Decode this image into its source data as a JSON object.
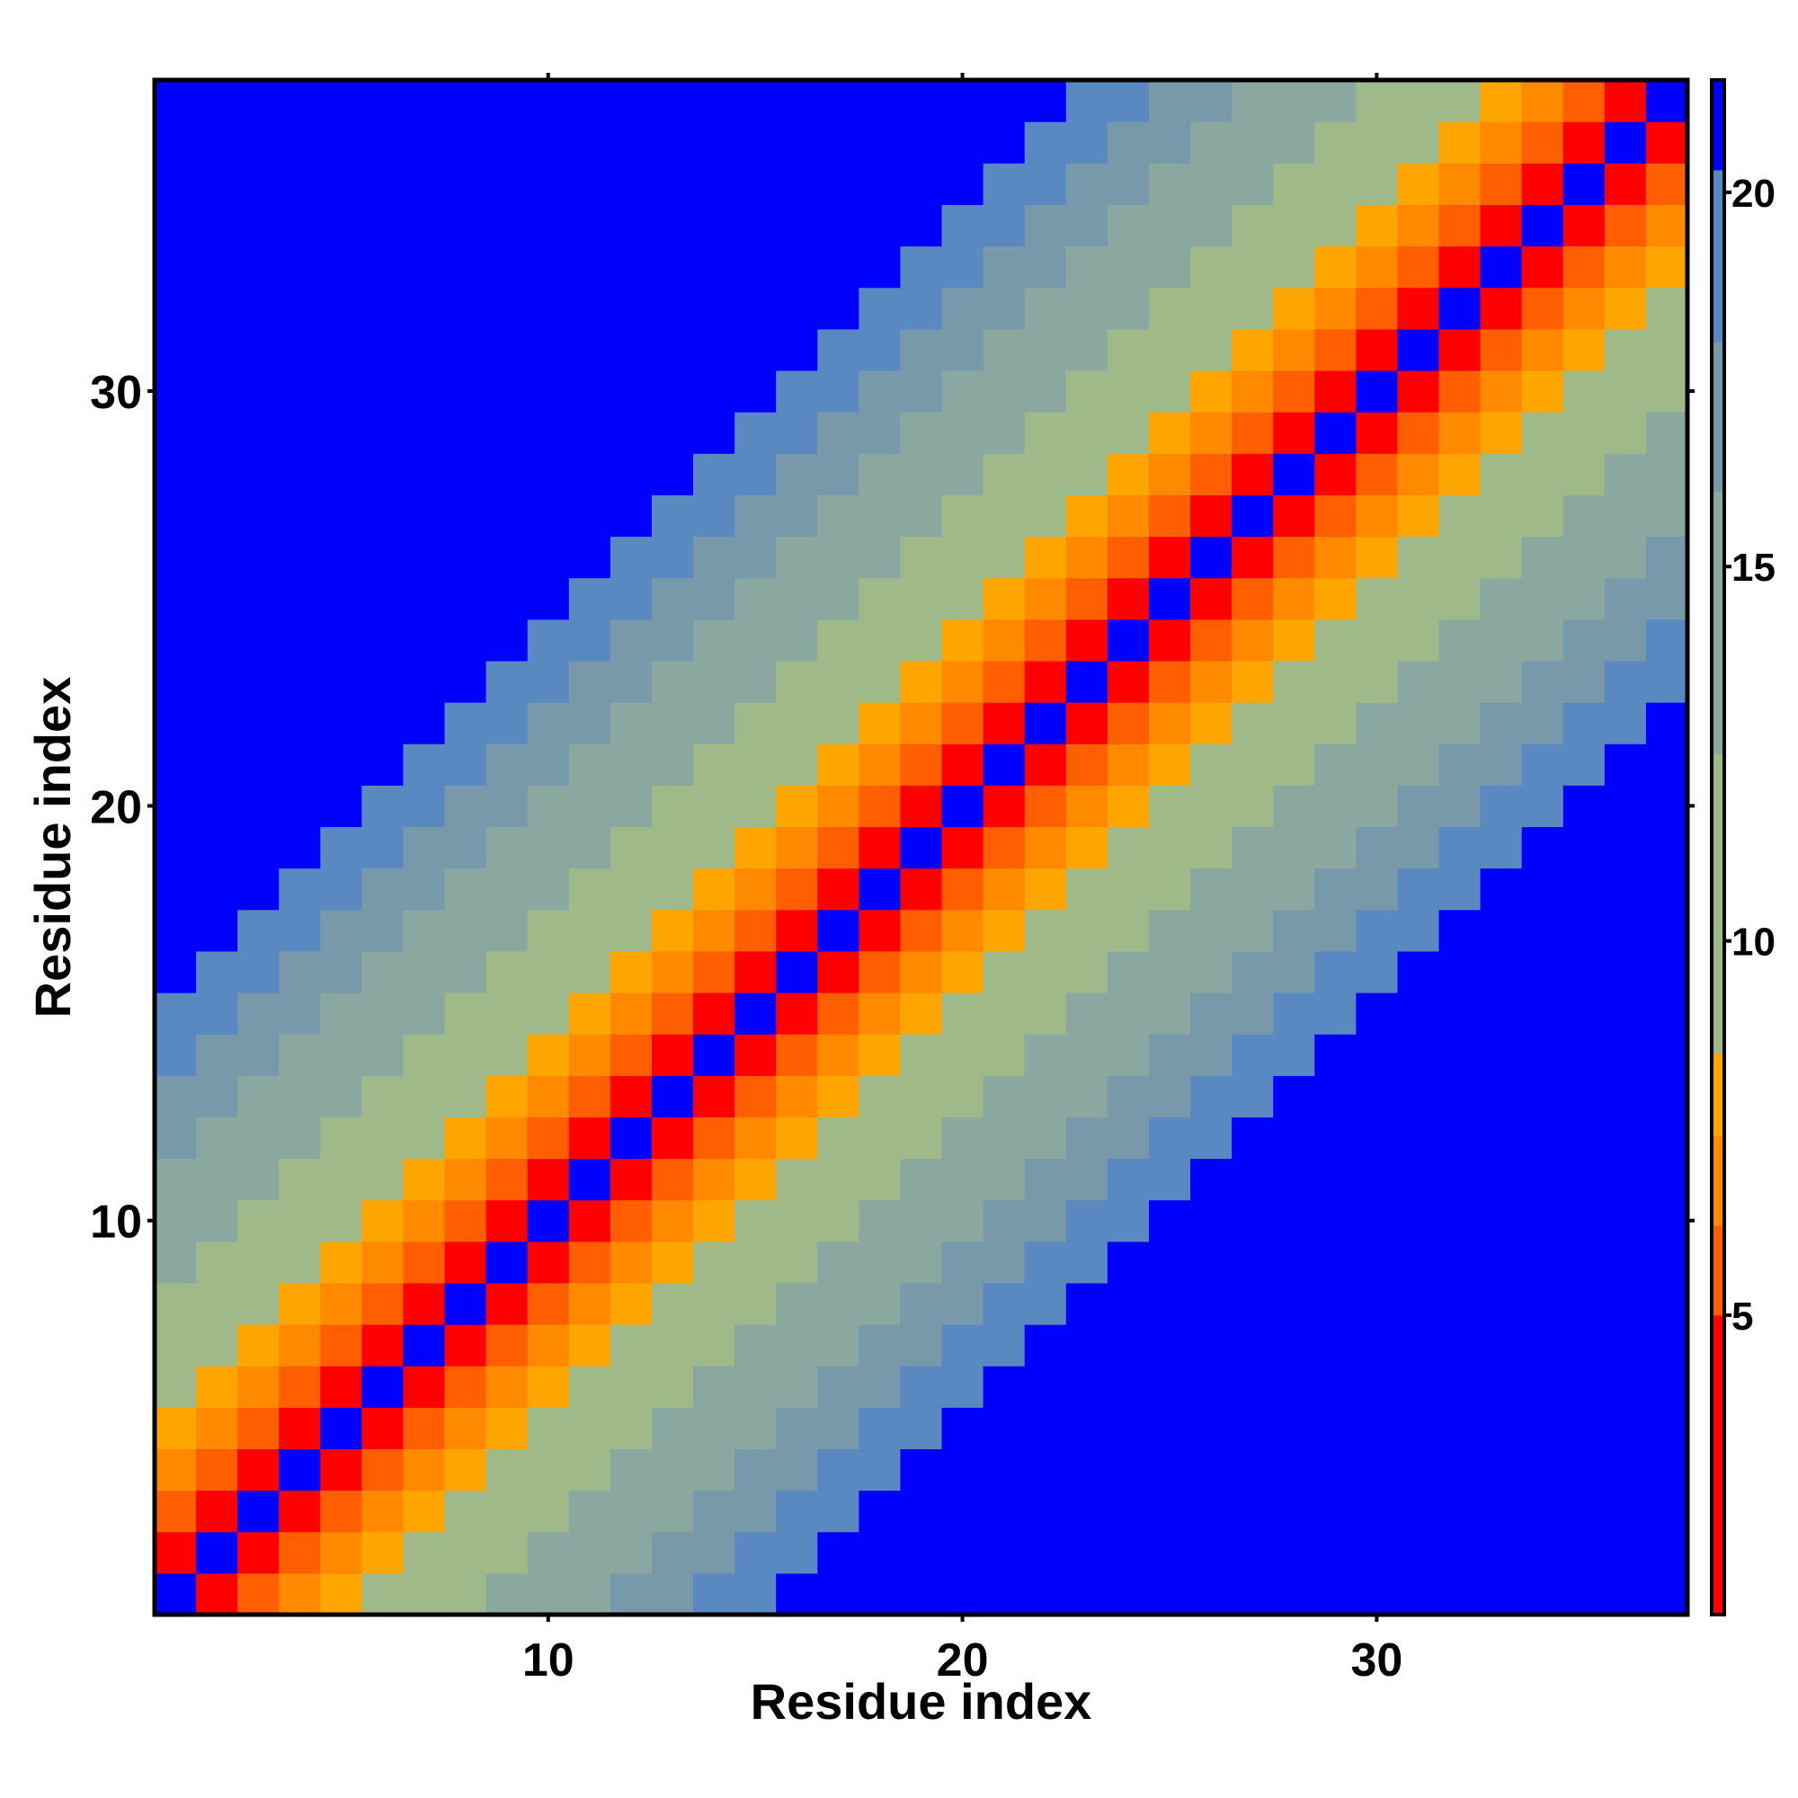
{
  "chart_data": {
    "type": "heatmap",
    "title": "",
    "xlabel": "Residue index",
    "ylabel": "Residue index",
    "n": 37,
    "x_ticks": [
      10,
      20,
      30
    ],
    "y_ticks": [
      10,
      20,
      30
    ],
    "xlim": [
      0.5,
      37.5
    ],
    "ylim": [
      0.5,
      37.5
    ],
    "colorbar": {
      "ticks": [
        5,
        10,
        15,
        20
      ],
      "range": [
        1,
        21.5
      ],
      "bands": [
        {
          "from": 1,
          "to": 5,
          "color": "#ff0000"
        },
        {
          "from": 5,
          "to": 6.2,
          "color": "#ff5f00"
        },
        {
          "from": 6.2,
          "to": 7.4,
          "color": "#ff8a00"
        },
        {
          "from": 7.4,
          "to": 8.5,
          "color": "#ffa500"
        },
        {
          "from": 8.5,
          "to": 12.5,
          "color": "#9fba88"
        },
        {
          "from": 12.5,
          "to": 16,
          "color": "#8aa8a0"
        },
        {
          "from": 16,
          "to": 18,
          "color": "#7799aa"
        },
        {
          "from": 18,
          "to": 20.3,
          "color": "#5a88c0"
        },
        {
          "from": 20.3,
          "to": 21.5,
          "color": "#0000ff"
        }
      ]
    },
    "colors": {
      "red": "#ff0000",
      "orange": "#ff8a00",
      "orange_dark": "#ff5f00",
      "amber": "#ffa500",
      "sage": "#9fba88",
      "grey_teal": "#7c9fa4",
      "steel_blue": "#5a88c0",
      "blue": "#0000ff"
    },
    "diagonal_pattern_note_free": true,
    "distance_by_offset": [
      0,
      3.8,
      5.6,
      6.4,
      7.8,
      9.5,
      10.6,
      11.8,
      12.9,
      14.0,
      15.3,
      16.6,
      17.8,
      19.0,
      20.2,
      21.0
    ]
  }
}
